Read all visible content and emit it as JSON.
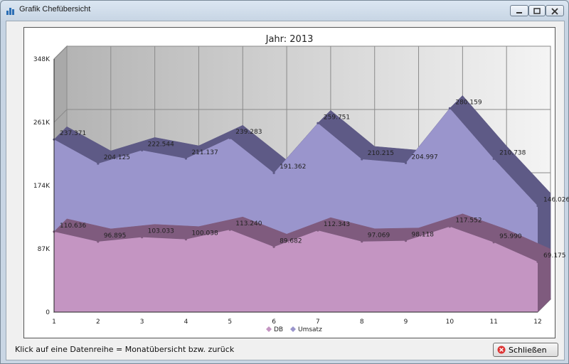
{
  "window": {
    "title": "Grafik Chefübersicht",
    "icons": {
      "app": "bar-chart-icon",
      "minimize": "minimize-icon",
      "maximize": "maximize-icon",
      "close": "close-icon"
    }
  },
  "status_text": "Klick auf eine Datenreihe = Monatübersicht bzw. zurück",
  "close_button": {
    "label": "Schließen",
    "icon": "close-circle-icon"
  },
  "colors": {
    "db": "#c495c2",
    "umsatz": "#9a95cc",
    "db_edge": "#7f5b7e",
    "umsatz_edge": "#5e5a86"
  },
  "chart_data": {
    "type": "area",
    "title": "Jahr: 2013",
    "categories": [
      "1",
      "2",
      "3",
      "4",
      "5",
      "6",
      "7",
      "8",
      "9",
      "10",
      "11",
      "12"
    ],
    "ylim": [
      0,
      348000
    ],
    "y_ticks": [
      0,
      87000,
      174000,
      261000,
      348000
    ],
    "y_tick_labels": [
      "0",
      "87K",
      "174K",
      "261K",
      "348K"
    ],
    "grid": true,
    "legend_position": "bottom",
    "series": [
      {
        "name": "DB",
        "values": [
          110636,
          96895,
          103033,
          100038,
          113240,
          89682,
          112343,
          97069,
          98118,
          117552,
          95990,
          69175
        ],
        "labels": [
          "110.636",
          "96.895",
          "103.033",
          "100.038",
          "113.240",
          "89.682",
          "112.343",
          "97.069",
          "98.118",
          "117.552",
          "95.990",
          "69.175"
        ]
      },
      {
        "name": "Umsatz",
        "values": [
          237371,
          204125,
          222544,
          211137,
          239283,
          191362,
          259751,
          210215,
          204997,
          280159,
          210738,
          146026
        ],
        "labels": [
          "237.371",
          "204.125",
          "222.544",
          "211.137",
          "239.283",
          "191.362",
          "259.751",
          "210.215",
          "204.997",
          "280.159",
          "210.738",
          "146.026"
        ]
      }
    ]
  }
}
